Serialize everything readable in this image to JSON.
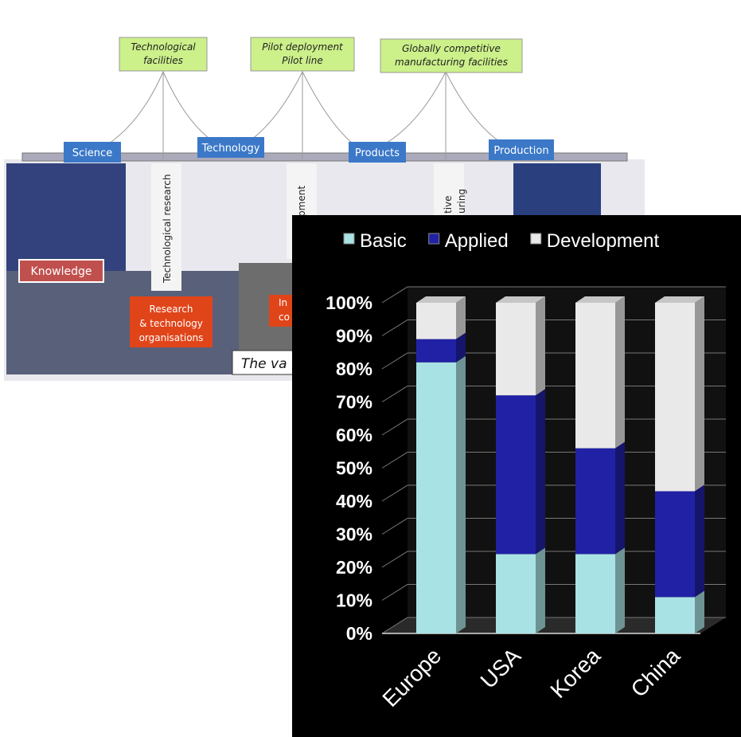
{
  "diagram": {
    "goals": [
      [
        "Technological",
        "facilities"
      ],
      [
        "Pilot deployment",
        "Pilot line"
      ],
      [
        "Globally competitive",
        "manufacturing facilities"
      ]
    ],
    "stages": [
      "Science",
      "Technology",
      "Products",
      "Production"
    ],
    "pillars": [
      "Technological research",
      "elopment",
      "tive",
      "uring"
    ],
    "knowledge": "Knowledge",
    "actors": [
      [
        "Research",
        "& technology",
        "organisations"
      ],
      [
        "In",
        "co"
      ]
    ],
    "caption": "The va"
  },
  "chart_data": {
    "type": "stacked-bar-3d",
    "categories": [
      "Europe",
      "USA",
      "Korea",
      "China"
    ],
    "series": [
      {
        "name": "Basic",
        "color": "#a9e2e4",
        "values": [
          82,
          24,
          24,
          11
        ]
      },
      {
        "name": "Applied",
        "color": "#2121a6",
        "values": [
          7,
          48,
          32,
          32
        ]
      },
      {
        "name": "Development",
        "color": "#e9e9e9",
        "values": [
          11,
          28,
          44,
          57
        ]
      }
    ],
    "ylim": [
      0,
      100
    ],
    "yticks": [
      {
        "value": 0,
        "label": "0%"
      },
      {
        "value": 10,
        "label": "10%"
      },
      {
        "value": 20,
        "label": "20%"
      },
      {
        "value": 30,
        "label": "30%"
      },
      {
        "value": 40,
        "label": "40%"
      },
      {
        "value": 50,
        "label": "50%"
      },
      {
        "value": 60,
        "label": "60%"
      },
      {
        "value": 70,
        "label": "70%"
      },
      {
        "value": 80,
        "label": "80%"
      },
      {
        "value": 90,
        "label": "90%"
      },
      {
        "value": 100,
        "label": "100%"
      }
    ],
    "grid": true,
    "legend": "top"
  }
}
